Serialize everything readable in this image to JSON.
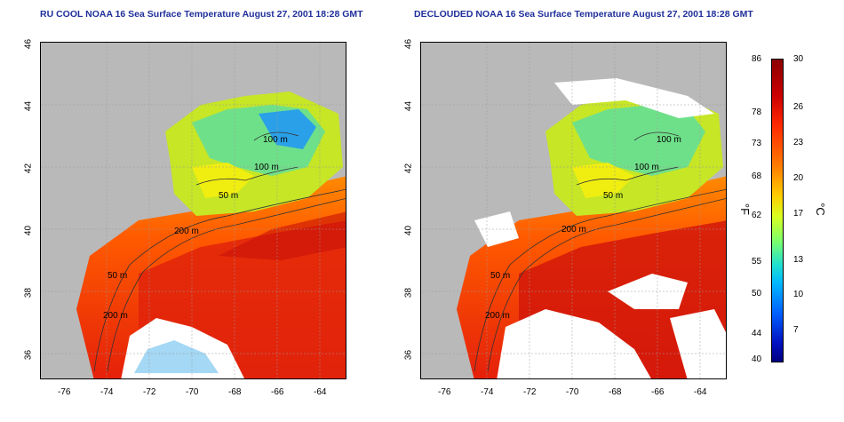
{
  "panels": [
    {
      "title": "RU COOL NOAA 16 Sea Surface Temperature August 27, 2001 18:28 GMT",
      "contour_labels": [
        "100 m",
        "100 m",
        "50 m",
        "200 m",
        "50 m",
        "200 m"
      ]
    },
    {
      "title": "DECLOUDED NOAA 16 Sea Surface Temperature August 27, 2001 18:28 GMT",
      "contour_labels": [
        "100 m",
        "100 m",
        "50 m",
        "200 m",
        "50 m",
        "200 m"
      ]
    }
  ],
  "axes": {
    "x_ticks": [
      "-76",
      "-74",
      "-72",
      "-70",
      "-68",
      "-66",
      "-64"
    ],
    "y_ticks": [
      "46",
      "44",
      "42",
      "40",
      "38",
      "36"
    ]
  },
  "colorbar": {
    "fahrenheit_label": "°F",
    "celsius_label": "°C",
    "fahrenheit_ticks": [
      "86",
      "78",
      "73",
      "68",
      "62",
      "55",
      "50",
      "44",
      "40"
    ],
    "celsius_ticks": [
      "30",
      "26",
      "23",
      "20",
      "17",
      "13",
      "10",
      "7"
    ]
  },
  "colors": {
    "title": "#1f2f9a",
    "land": "#b9b9b9",
    "warm": "#e8280c",
    "cool": "#4cc0e0"
  }
}
